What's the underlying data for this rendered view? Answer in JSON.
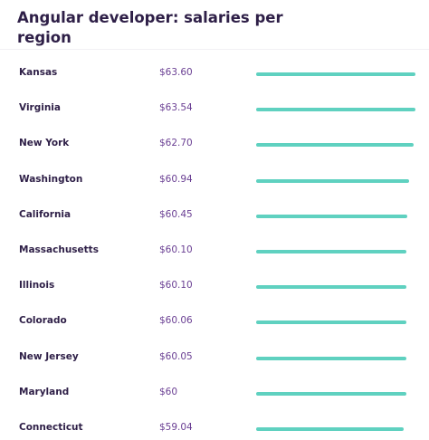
{
  "chart_title": "Angular developer: salaries per region",
  "colors": {
    "bar": "#5fd1c0",
    "title": "#2e1f47",
    "value": "#6a3f93"
  },
  "chart_data": {
    "type": "bar",
    "title": "Angular developer: salaries per region",
    "categories": [
      "Kansas",
      "Virginia",
      "New York",
      "Washington",
      "California",
      "Massachusetts",
      "Illinois",
      "Colorado",
      "New Jersey",
      "Maryland",
      "Connecticut"
    ],
    "value_labels": [
      "$63.60",
      "$63.54",
      "$62.70",
      "$60.94",
      "$60.45",
      "$60.10",
      "$60.10",
      "$60.06",
      "$60.05",
      "$60",
      "$59.04"
    ],
    "values": [
      63.6,
      63.54,
      62.7,
      60.94,
      60.45,
      60.1,
      60.1,
      60.06,
      60.05,
      60,
      59.04
    ],
    "ylim": [
      0,
      63.6
    ],
    "orientation": "horizontal",
    "grid": false,
    "legend": "none"
  }
}
